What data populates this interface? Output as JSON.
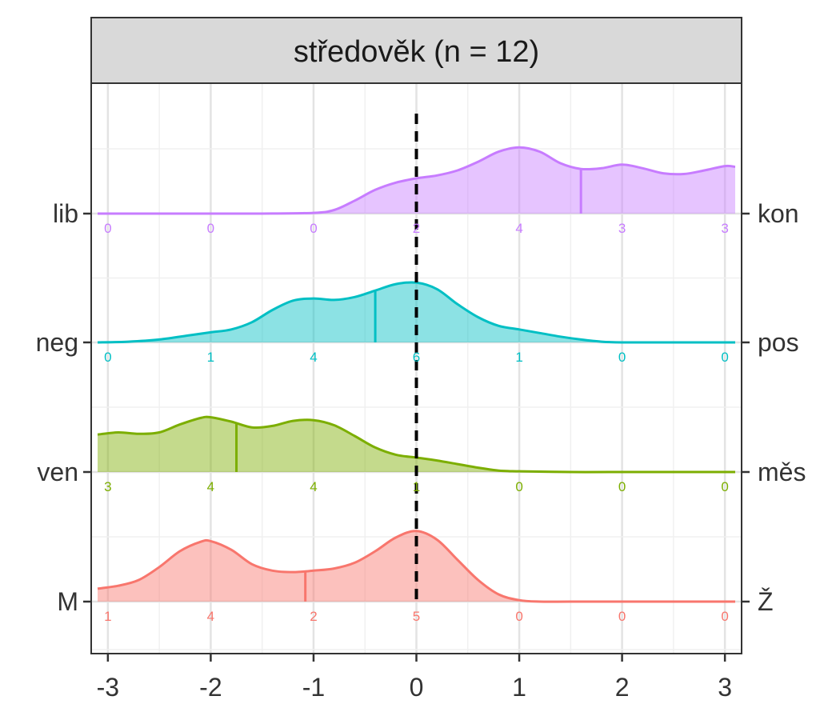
{
  "chart_data": {
    "type": "ridgeline",
    "panel_title": "středověk (n = 12)",
    "xlim": [
      -3.1,
      3.1
    ],
    "x_ticks": [
      -3,
      -2,
      -1,
      0,
      1,
      2,
      3
    ],
    "x_tick_labels": [
      "-3",
      "-2",
      "-1",
      "0",
      "1",
      "2",
      "3"
    ],
    "reference_line_x": 0,
    "grid": true,
    "count_positions": [
      -3,
      -2,
      -1,
      0,
      1,
      2,
      3
    ],
    "series": [
      {
        "left_label": "lib",
        "right_label": "kon",
        "color": "#C77CFF",
        "mean": 1.6,
        "counts": [
          "0",
          "0",
          "0",
          "2",
          "4",
          "3",
          "3"
        ],
        "density_x": [
          -3.1,
          -2.5,
          -2.0,
          -1.5,
          -1.0,
          -0.8,
          -0.6,
          -0.4,
          -0.2,
          0.0,
          0.2,
          0.4,
          0.6,
          0.8,
          1.0,
          1.2,
          1.4,
          1.6,
          1.8,
          2.0,
          2.2,
          2.4,
          2.6,
          2.8,
          3.0,
          3.1
        ],
        "density_y": [
          0,
          0,
          0,
          0,
          0.01,
          0.05,
          0.18,
          0.33,
          0.43,
          0.49,
          0.53,
          0.6,
          0.72,
          0.86,
          0.92,
          0.86,
          0.7,
          0.62,
          0.63,
          0.68,
          0.63,
          0.56,
          0.55,
          0.6,
          0.66,
          0.65
        ]
      },
      {
        "left_label": "neg",
        "right_label": "pos",
        "color": "#00BFC4",
        "mean": -0.4,
        "counts": [
          "0",
          "1",
          "4",
          "6",
          "1",
          "0",
          "0"
        ],
        "density_x": [
          -3.1,
          -2.8,
          -2.5,
          -2.2,
          -2.0,
          -1.8,
          -1.6,
          -1.4,
          -1.2,
          -1.0,
          -0.8,
          -0.6,
          -0.4,
          -0.2,
          0.0,
          0.2,
          0.4,
          0.6,
          0.8,
          1.0,
          1.2,
          1.4,
          1.6,
          1.8,
          2.0,
          2.5,
          3.1
        ],
        "density_y": [
          0,
          0.01,
          0.04,
          0.1,
          0.14,
          0.18,
          0.28,
          0.45,
          0.58,
          0.61,
          0.59,
          0.63,
          0.72,
          0.81,
          0.83,
          0.74,
          0.53,
          0.35,
          0.23,
          0.18,
          0.13,
          0.08,
          0.04,
          0.01,
          0,
          0,
          0
        ]
      },
      {
        "left_label": "ven",
        "right_label": "měs",
        "color": "#7CAE00",
        "mean": -1.75,
        "counts": [
          "3",
          "4",
          "4",
          "1",
          "0",
          "0",
          "0"
        ],
        "density_x": [
          -3.1,
          -2.9,
          -2.7,
          -2.5,
          -2.3,
          -2.1,
          -2.0,
          -1.8,
          -1.6,
          -1.4,
          -1.2,
          -1.0,
          -0.8,
          -0.6,
          -0.4,
          -0.2,
          0.0,
          0.2,
          0.4,
          0.6,
          0.8,
          1.0,
          1.5,
          2.0,
          3.1
        ],
        "density_y": [
          0.52,
          0.55,
          0.53,
          0.55,
          0.66,
          0.75,
          0.76,
          0.7,
          0.62,
          0.64,
          0.71,
          0.72,
          0.65,
          0.5,
          0.34,
          0.24,
          0.2,
          0.16,
          0.11,
          0.06,
          0.02,
          0.01,
          0,
          0,
          0
        ]
      },
      {
        "left_label": "M",
        "right_label": "Ž",
        "color": "#F8766D",
        "mean": -1.08,
        "counts": [
          "1",
          "4",
          "2",
          "5",
          "0",
          "0",
          "0"
        ],
        "density_x": [
          -3.1,
          -2.9,
          -2.7,
          -2.5,
          -2.3,
          -2.1,
          -2.0,
          -1.8,
          -1.6,
          -1.4,
          -1.2,
          -1.0,
          -0.8,
          -0.6,
          -0.4,
          -0.2,
          0.0,
          0.2,
          0.4,
          0.6,
          0.8,
          1.0,
          1.2,
          1.5,
          2.0,
          3.1
        ],
        "density_y": [
          0.18,
          0.22,
          0.3,
          0.48,
          0.7,
          0.83,
          0.84,
          0.72,
          0.52,
          0.43,
          0.41,
          0.43,
          0.46,
          0.54,
          0.7,
          0.89,
          0.98,
          0.86,
          0.58,
          0.3,
          0.1,
          0.02,
          0,
          0,
          0,
          0
        ]
      }
    ]
  }
}
